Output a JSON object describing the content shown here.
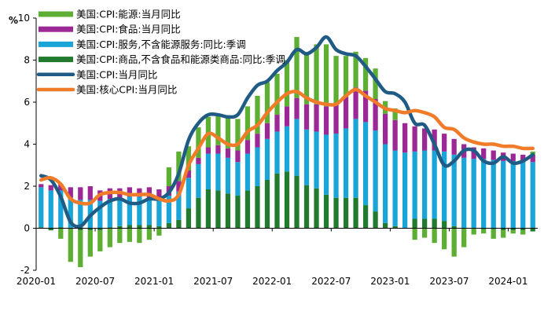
{
  "chart_data": {
    "type": "bar",
    "title": "",
    "ylabel": "%",
    "xlabel": "",
    "ylim": [
      -2,
      10
    ],
    "yticks": [
      -2,
      0,
      2,
      4,
      6,
      8,
      10
    ],
    "ytick_labels": [
      "-2",
      "0",
      "2",
      "4",
      "6",
      "8",
      "10"
    ],
    "xtick_labels": [
      {
        "label": "2020-01",
        "index": 0
      },
      {
        "label": "2020-07",
        "index": 6
      },
      {
        "label": "2021-01",
        "index": 12
      },
      {
        "label": "2021-07",
        "index": 18
      },
      {
        "label": "2022-01",
        "index": 24
      },
      {
        "label": "2022-07",
        "index": 30
      },
      {
        "label": "2023-01",
        "index": 36
      },
      {
        "label": "2023-07",
        "index": 42
      },
      {
        "label": "2024-01",
        "index": 48
      }
    ],
    "months": [
      "2020-01",
      "2020-02",
      "2020-03",
      "2020-04",
      "2020-05",
      "2020-06",
      "2020-07",
      "2020-08",
      "2020-09",
      "2020-10",
      "2020-11",
      "2020-12",
      "2021-01",
      "2021-02",
      "2021-03",
      "2021-04",
      "2021-05",
      "2021-06",
      "2021-07",
      "2021-08",
      "2021-09",
      "2021-10",
      "2021-11",
      "2021-12",
      "2022-01",
      "2022-02",
      "2022-03",
      "2022-04",
      "2022-05",
      "2022-06",
      "2022-07",
      "2022-08",
      "2022-09",
      "2022-10",
      "2022-11",
      "2022-12",
      "2023-01",
      "2023-02",
      "2023-03",
      "2023-04",
      "2023-05",
      "2023-06",
      "2023-07",
      "2023-08",
      "2023-09",
      "2023-10",
      "2023-11",
      "2023-12",
      "2024-01",
      "2024-02",
      "2024-03"
    ],
    "series": [
      {
        "name": "美国:CPI:商品,不含食品和能源类商品:同比:季调",
        "kind": "bar",
        "color": "#217a2e",
        "values": [
          0.05,
          -0.1,
          0.05,
          -0.05,
          -0.1,
          -0.1,
          -0.1,
          0.05,
          0.1,
          0.15,
          0.15,
          0.15,
          0.1,
          0.25,
          0.4,
          0.95,
          1.45,
          1.85,
          1.8,
          1.65,
          1.55,
          1.8,
          2.0,
          2.3,
          2.6,
          2.7,
          2.5,
          2.05,
          1.9,
          1.6,
          1.45,
          1.45,
          1.45,
          1.1,
          0.8,
          0.25,
          0.1,
          0.0,
          0.45,
          0.45,
          0.45,
          0.35,
          0.1,
          0.0,
          0.0,
          -0.05,
          -0.05,
          -0.1,
          -0.1,
          -0.1,
          -0.15
        ]
      },
      {
        "name": "美国:CPI:服务,不含能源服务:同比:季调",
        "kind": "bar",
        "color": "#19a5d8",
        "values": [
          1.9,
          1.8,
          1.75,
          1.45,
          1.35,
          1.35,
          1.3,
          1.35,
          1.35,
          1.35,
          1.35,
          1.3,
          1.3,
          1.3,
          1.35,
          1.45,
          1.6,
          1.7,
          1.75,
          1.7,
          1.6,
          1.75,
          1.85,
          1.95,
          2.0,
          2.15,
          2.7,
          2.65,
          2.7,
          2.85,
          3.05,
          3.3,
          3.75,
          3.95,
          3.85,
          3.75,
          3.6,
          3.6,
          3.2,
          3.25,
          3.25,
          3.3,
          3.4,
          3.35,
          3.3,
          3.3,
          3.25,
          3.2,
          3.2,
          3.15,
          3.15
        ]
      },
      {
        "name": "美国:CPI:食品:当月同比",
        "kind": "bar",
        "color": "#9b2894",
        "values": [
          0.15,
          0.25,
          0.3,
          0.5,
          0.6,
          0.65,
          0.5,
          0.5,
          0.45,
          0.45,
          0.4,
          0.5,
          0.45,
          0.45,
          0.5,
          0.35,
          0.3,
          0.3,
          0.4,
          0.45,
          0.55,
          0.65,
          0.65,
          0.75,
          0.8,
          0.95,
          1.0,
          1.2,
          1.3,
          1.35,
          1.4,
          1.5,
          1.5,
          1.5,
          1.5,
          1.45,
          1.45,
          1.4,
          1.2,
          1.05,
          1.0,
          0.85,
          0.75,
          0.65,
          0.55,
          0.5,
          0.45,
          0.4,
          0.35,
          0.35,
          0.35
        ]
      },
      {
        "name": "美国:CPI:能源:当月同比",
        "kind": "bar",
        "color": "#5caf33",
        "values": [
          0.0,
          0.0,
          -0.5,
          -1.55,
          -1.75,
          -1.25,
          -1.0,
          -0.9,
          -0.7,
          -0.65,
          -0.7,
          -0.55,
          -0.35,
          0.9,
          1.4,
          1.15,
          1.45,
          1.45,
          1.45,
          1.45,
          1.5,
          1.6,
          1.8,
          1.95,
          1.95,
          2.2,
          2.9,
          2.4,
          2.85,
          2.95,
          2.3,
          1.95,
          1.7,
          1.55,
          1.45,
          0.6,
          0.55,
          0.0,
          -0.55,
          -0.45,
          -0.7,
          -1.0,
          -1.35,
          -0.9,
          -0.3,
          -0.2,
          -0.45,
          -0.35,
          -0.15,
          -0.2,
          0.15
        ]
      },
      {
        "name": "美国:CPI:当月同比",
        "kind": "line",
        "color": "#1f5b84",
        "values": [
          2.5,
          2.3,
          1.5,
          0.3,
          0.1,
          0.6,
          1.0,
          1.3,
          1.4,
          1.2,
          1.2,
          1.4,
          1.4,
          1.7,
          2.6,
          4.2,
          5.0,
          5.4,
          5.4,
          5.3,
          5.4,
          6.2,
          6.8,
          7.0,
          7.5,
          7.9,
          8.5,
          8.3,
          8.6,
          9.1,
          8.5,
          8.3,
          8.2,
          7.7,
          7.1,
          6.5,
          6.4,
          6.0,
          5.0,
          4.9,
          4.0,
          3.0,
          3.2,
          3.7,
          3.7,
          3.2,
          3.1,
          3.4,
          3.1,
          3.2,
          3.5
        ]
      },
      {
        "name": "美国:核心CPI:当月同比",
        "kind": "line",
        "color": "#f07c2a",
        "values": [
          2.3,
          2.4,
          2.1,
          1.4,
          1.2,
          1.2,
          1.6,
          1.7,
          1.7,
          1.6,
          1.6,
          1.6,
          1.4,
          1.3,
          1.6,
          3.0,
          3.8,
          4.5,
          4.3,
          4.0,
          4.0,
          4.6,
          4.9,
          5.5,
          6.0,
          6.4,
          6.5,
          6.2,
          6.0,
          5.9,
          5.9,
          6.3,
          6.6,
          6.3,
          6.0,
          5.7,
          5.6,
          5.5,
          5.6,
          5.5,
          5.3,
          4.8,
          4.7,
          4.3,
          4.1,
          4.0,
          4.0,
          3.9,
          3.9,
          3.8,
          3.8
        ]
      }
    ],
    "legend": [
      {
        "label": "美国:CPI:能源:当月同比",
        "color": "#5caf33",
        "marker": "bar"
      },
      {
        "label": "美国:CPI:食品:当月同比",
        "color": "#9b2894",
        "marker": "bar"
      },
      {
        "label": "美国:CPI:服务,不含能源服务:同比:季调",
        "color": "#19a5d8",
        "marker": "bar"
      },
      {
        "label": "美国:CPI:商品,不含食品和能源类商品:同比:季调",
        "color": "#217a2e",
        "marker": "bar"
      },
      {
        "label": "美国:CPI:当月同比",
        "color": "#1f5b84",
        "marker": "line"
      },
      {
        "label": "美国:核心CPI:当月同比",
        "color": "#f07c2a",
        "marker": "line"
      }
    ],
    "legend_position": "top-left",
    "grid": false
  }
}
